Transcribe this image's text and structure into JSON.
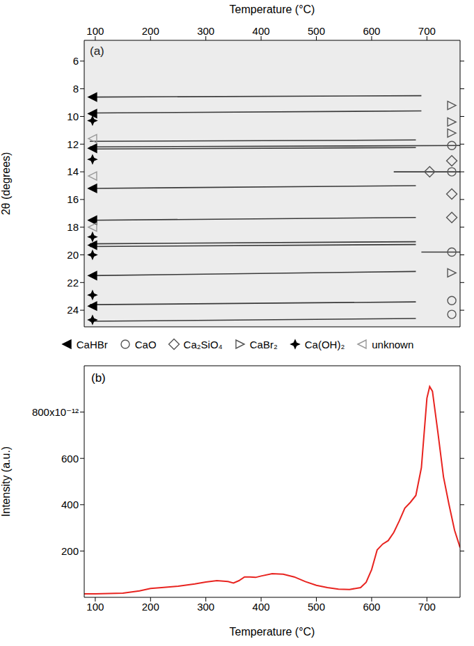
{
  "chart_data": [
    {
      "type": "line",
      "panel_label": "(a)",
      "x_label": "Temperature (°C)",
      "y_label": "2θ (degrees)",
      "xlim": [
        80,
        760
      ],
      "xticks": [
        100,
        200,
        300,
        400,
        500,
        600,
        700
      ],
      "ylim": [
        25.2,
        4.5
      ],
      "yticks": [
        6,
        8,
        10,
        12,
        14,
        16,
        18,
        20,
        22,
        24
      ],
      "color": "#3a3a3a",
      "legend": "bottom",
      "reflections": [
        {
          "x": [
            90,
            690
          ],
          "values": [
            8.6,
            8.5
          ]
        },
        {
          "x": [
            90,
            690
          ],
          "values": [
            9.75,
            9.6
          ]
        },
        {
          "x": [
            90,
            680
          ],
          "values": [
            11.8,
            11.7
          ]
        },
        {
          "x": [
            90,
            760
          ],
          "values": [
            12.2,
            12.1
          ]
        },
        {
          "x": [
            90,
            680
          ],
          "values": [
            12.35,
            12.25
          ]
        },
        {
          "x": [
            640,
            760
          ],
          "values": [
            14.0,
            14.0
          ]
        },
        {
          "x": [
            90,
            680
          ],
          "values": [
            15.2,
            15.0
          ]
        },
        {
          "x": [
            90,
            680
          ],
          "values": [
            17.5,
            17.3
          ]
        },
        {
          "x": [
            90,
            680
          ],
          "values": [
            19.2,
            19.05
          ]
        },
        {
          "x": [
            90,
            680
          ],
          "values": [
            19.4,
            19.25
          ]
        },
        {
          "x": [
            690,
            760
          ],
          "values": [
            19.8,
            19.8
          ]
        },
        {
          "x": [
            90,
            680
          ],
          "values": [
            21.5,
            21.2
          ]
        },
        {
          "x": [
            90,
            680
          ],
          "values": [
            23.6,
            23.4
          ]
        },
        {
          "x": [
            90,
            680
          ],
          "values": [
            24.8,
            24.6
          ]
        }
      ],
      "markers": [
        {
          "name": "CaHBr",
          "marker": "filled-triangle-left",
          "color": "#000000",
          "x": [
            95,
            95,
            95,
            95,
            95,
            95,
            95,
            95
          ],
          "values": [
            8.6,
            9.8,
            12.3,
            15.2,
            17.5,
            19.3,
            21.5,
            23.7
          ]
        },
        {
          "name": "CaO",
          "marker": "open-circle",
          "color": "#555555",
          "x": [
            745,
            745,
            745,
            745,
            745
          ],
          "values": [
            12.1,
            14.0,
            19.8,
            23.3,
            24.3
          ]
        },
        {
          "name": "Ca₂SiO₄",
          "marker": "open-diamond",
          "color": "#555555",
          "x": [
            705,
            745,
            745,
            745
          ],
          "values": [
            14.0,
            13.2,
            15.6,
            17.3
          ]
        },
        {
          "name": "CaBr₂",
          "marker": "open-triangle-right",
          "color": "#555555",
          "x": [
            745,
            745,
            745,
            745
          ],
          "values": [
            9.2,
            10.4,
            11.2,
            21.3
          ]
        },
        {
          "name": "Ca(OH)₂",
          "marker": "filled-star",
          "color": "#000000",
          "x": [
            95,
            95,
            95,
            95,
            95,
            95
          ],
          "values": [
            10.3,
            13.1,
            18.7,
            20.0,
            22.9,
            24.7
          ]
        },
        {
          "name": "unknown",
          "marker": "open-triangle-left",
          "color": "#999999",
          "x": [
            95,
            95,
            95
          ],
          "values": [
            11.6,
            14.3,
            18.0
          ]
        }
      ]
    },
    {
      "type": "line",
      "panel_label": "(b)",
      "x_label": "Temperature (°C)",
      "y_label": "Intensity (a.u.)",
      "xlim": [
        80,
        760
      ],
      "xticks": [
        100,
        200,
        300,
        400,
        500,
        600,
        700
      ],
      "ylim": [
        0,
        1e-09
      ],
      "yticks": [
        {
          "value": 2e-10,
          "label": "200"
        },
        {
          "value": 4e-10,
          "label": "400"
        },
        {
          "value": 6e-10,
          "label": "600"
        },
        {
          "value": 8e-10,
          "label": "800x10⁻¹²"
        }
      ],
      "color": "#e8231f",
      "x": [
        80,
        100,
        150,
        180,
        200,
        220,
        250,
        280,
        300,
        320,
        340,
        350,
        360,
        370,
        380,
        390,
        400,
        420,
        440,
        460,
        480,
        500,
        520,
        540,
        560,
        580,
        590,
        600,
        610,
        620,
        630,
        640,
        650,
        660,
        670,
        680,
        690,
        700,
        705,
        710,
        720,
        730,
        740,
        750,
        760
      ],
      "values": [
        1.5e-11,
        1.5e-11,
        1.8e-11,
        2.8e-11,
        3.8e-11,
        4.2e-11,
        4.8e-11,
        5.8e-11,
        6.6e-11,
        7.2e-11,
        6.8e-11,
        6.2e-11,
        7.2e-11,
        8.8e-11,
        8.8e-11,
        8.6e-11,
        9.2e-11,
        1.02e-10,
        1e-10,
        8.8e-11,
        6.8e-11,
        5.2e-11,
        4.2e-11,
        3.5e-11,
        3.4e-11,
        4.2e-11,
        6.5e-11,
        1.2e-10,
        2.05e-10,
        2.3e-10,
        2.45e-10,
        2.8e-10,
        3.3e-10,
        3.85e-10,
        4.1e-10,
        4.4e-10,
        5.6e-10,
        8.6e-10,
        9.1e-10,
        8.9e-10,
        7.1e-10,
        5.2e-10,
        4e-10,
        2.9e-10,
        2.15e-10
      ]
    }
  ]
}
